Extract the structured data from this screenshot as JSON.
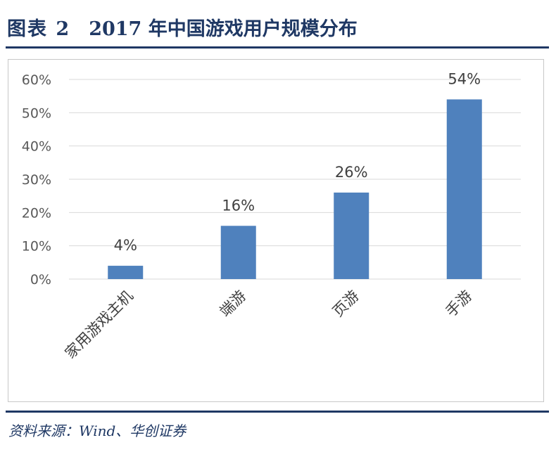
{
  "header": {
    "label": "图表 2",
    "title": "2017 年中国游戏用户规模分布"
  },
  "source": "资料来源：Wind、华创证券",
  "colors": {
    "bar": "#4f81bd",
    "grid": "#d9d9d9",
    "rule": "#1f3864"
  },
  "chart_data": {
    "type": "bar",
    "categories": [
      "家用游戏主机",
      "端游",
      "页游",
      "手游"
    ],
    "values": [
      4,
      16,
      26,
      54
    ],
    "value_labels": [
      "4%",
      "16%",
      "26%",
      "54%"
    ],
    "ylim": [
      0,
      60
    ],
    "yticks": [
      0,
      10,
      20,
      30,
      40,
      50,
      60
    ],
    "ytick_labels": [
      "0%",
      "10%",
      "20%",
      "30%",
      "40%",
      "50%",
      "60%"
    ],
    "grid": true
  }
}
